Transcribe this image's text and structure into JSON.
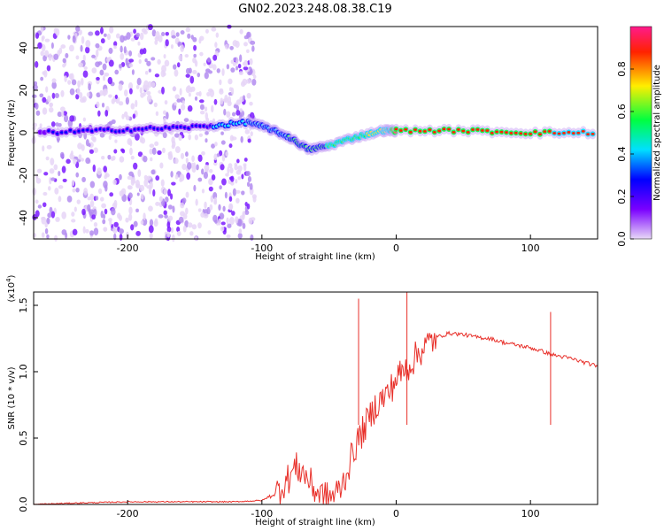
{
  "title": "GN02.2023.248.08.38.C19",
  "chart_data": [
    {
      "type": "heatmap",
      "xlabel": "Height of straight line (km)",
      "ylabel": "Frequency (Hz)",
      "xlim": [
        -270,
        150
      ],
      "ylim": [
        -50,
        50
      ],
      "xticks": [
        -200,
        -100,
        0,
        100
      ],
      "yticks": [
        -40,
        -20,
        0,
        20,
        40
      ],
      "colorbar": {
        "label": "Normalized spectral amplitude",
        "range": [
          0,
          1
        ],
        "ticks": [
          0.0,
          0.2,
          0.4,
          0.6,
          0.8
        ],
        "colors": [
          "#e8d9f7",
          "#7a00ff",
          "#0000ff",
          "#00e0ff",
          "#00ff40",
          "#ffee00",
          "#ff2200",
          "#ff1a8c"
        ]
      },
      "ridge": [
        {
          "x": -265,
          "freq": 0,
          "amp": 0.2
        },
        {
          "x": -220,
          "freq": 1,
          "amp": 0.35
        },
        {
          "x": -180,
          "freq": 2,
          "amp": 0.3
        },
        {
          "x": -140,
          "freq": 3,
          "amp": 0.35
        },
        {
          "x": -110,
          "freq": 5,
          "amp": 0.4
        },
        {
          "x": -95,
          "freq": 2,
          "amp": 0.45
        },
        {
          "x": -80,
          "freq": -2,
          "amp": 0.5
        },
        {
          "x": -65,
          "freq": -8,
          "amp": 0.55
        },
        {
          "x": -50,
          "freq": -6,
          "amp": 0.6
        },
        {
          "x": -30,
          "freq": -2,
          "amp": 0.6
        },
        {
          "x": -10,
          "freq": 1,
          "amp": 0.7
        },
        {
          "x": 0,
          "freq": 1,
          "amp": 0.9
        },
        {
          "x": 50,
          "freq": 1,
          "amp": 0.9
        },
        {
          "x": 100,
          "freq": 0,
          "amp": 0.85
        },
        {
          "x": 150,
          "freq": 0,
          "amp": 0.8
        }
      ]
    },
    {
      "type": "line",
      "xlabel": "Height of straight line (km)",
      "ylabel": "SNR (10 * v/v)",
      "y_multiplier": "(x10^4)",
      "xlim": [
        -270,
        150
      ],
      "ylim": [
        0,
        1.6
      ],
      "xticks": [
        -200,
        -100,
        0,
        100
      ],
      "yticks": [
        0.0,
        0.5,
        1.0,
        1.5
      ],
      "series": [
        {
          "color": "#e8302a",
          "x": [
            -270,
            -240,
            -200,
            -160,
            -120,
            -100,
            -90,
            -80,
            -75,
            -70,
            -65,
            -60,
            -55,
            -50,
            -45,
            -40,
            -35,
            -30,
            -25,
            -20,
            -15,
            -10,
            -5,
            0,
            5,
            10,
            15,
            20,
            25,
            30,
            40,
            50,
            60,
            70,
            80,
            90,
            100,
            110,
            115,
            120,
            130,
            140,
            150
          ],
          "y": [
            0.0,
            0.01,
            0.02,
            0.02,
            0.02,
            0.03,
            0.08,
            0.2,
            0.28,
            0.25,
            0.18,
            0.1,
            0.07,
            0.05,
            0.08,
            0.15,
            0.3,
            0.45,
            0.55,
            0.65,
            0.75,
            0.8,
            0.85,
            0.95,
            1.0,
            1.05,
            1.12,
            1.18,
            1.22,
            1.26,
            1.29,
            1.28,
            1.26,
            1.25,
            1.22,
            1.2,
            1.18,
            1.15,
            1.13,
            1.12,
            1.1,
            1.07,
            1.04
          ]
        }
      ],
      "spikes": [
        {
          "x": -28,
          "y": 1.55
        },
        {
          "x": 8,
          "y": 1.62
        },
        {
          "x": 115,
          "y": 1.45
        }
      ]
    }
  ]
}
